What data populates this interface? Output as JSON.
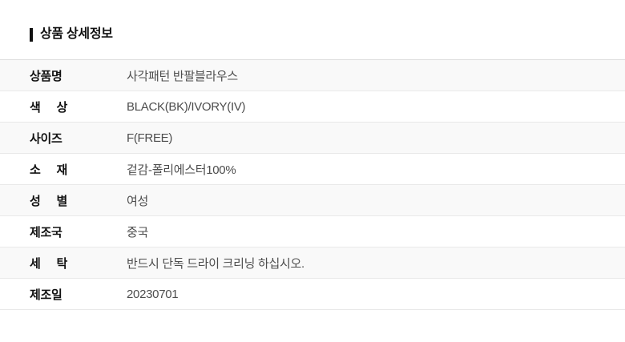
{
  "section": {
    "title": "상품 상세정보"
  },
  "table": {
    "rows": [
      {
        "label": "상품명",
        "value": "사각패턴 반팔블라우스"
      },
      {
        "label": "색 상",
        "value": "BLACK(BK)/IVORY(IV)"
      },
      {
        "label": "사이즈",
        "value": "F(FREE)"
      },
      {
        "label": "소 재",
        "value": "겉감-폴리에스터100%"
      },
      {
        "label": "성 별",
        "value": "여성"
      },
      {
        "label": "제조국",
        "value": "중국"
      },
      {
        "label": "세 탁",
        "value": "반드시 단독 드라이 크리닝 하십시오."
      },
      {
        "label": "제조일",
        "value": "20230701"
      }
    ]
  },
  "colors": {
    "title_accent": "#111111",
    "row_alt_bg": "#f9f9f9",
    "row_border": "#e9e9e9",
    "table_top_border": "#dedede",
    "label_text": "#111111",
    "value_text": "#4d4d4d"
  }
}
